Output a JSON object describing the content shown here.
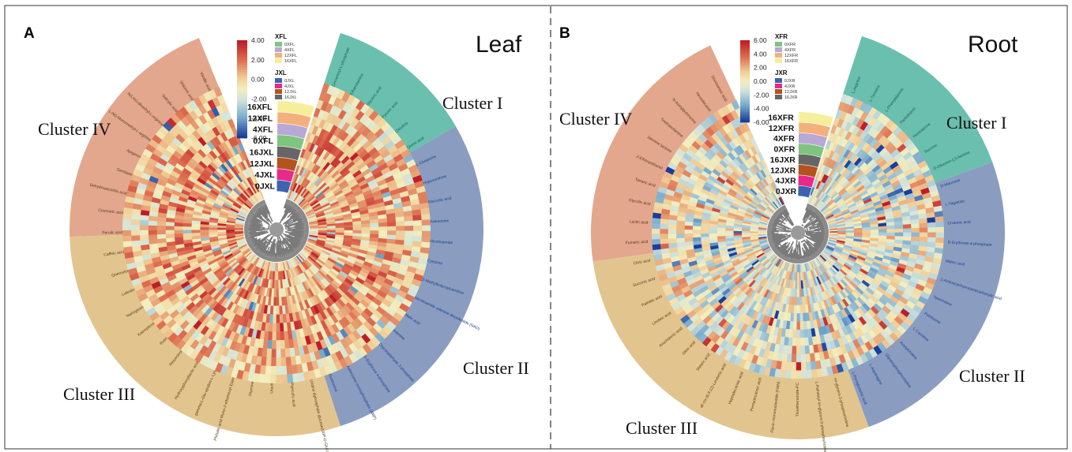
{
  "panels": [
    {
      "letter": "A",
      "title": "Leaf",
      "clusters": [
        {
          "name": "Cluster I",
          "color": "#6bbfae"
        },
        {
          "name": "Cluster II",
          "color": "#8a9dc1"
        },
        {
          "name": "Cluster III",
          "color": "#e2c58e"
        },
        {
          "name": "Cluster IV",
          "color": "#e3a78d"
        }
      ],
      "tracks": [
        "16XFL",
        "12XFL",
        "4XFL",
        "0XFL",
        "16JXL",
        "12JXL",
        "4JXL",
        "0JXL"
      ],
      "colorscale": {
        "ticks": [
          "4.00",
          "2.00",
          "0.00",
          "-2.00",
          "-4.00",
          "-6.00"
        ]
      },
      "legend_groups": [
        {
          "title": "XFL",
          "items": [
            {
              "label": "0XFL",
              "color": "#7fc47f"
            },
            {
              "label": "4XFL",
              "color": "#b7a8d6"
            },
            {
              "label": "12XFL",
              "color": "#f3b07d"
            },
            {
              "label": "16XFL",
              "color": "#f6ef9a"
            }
          ]
        },
        {
          "title": "JXL",
          "items": [
            {
              "label": "0JXL",
              "color": "#3b63b0"
            },
            {
              "label": "4JXL",
              "color": "#e7298a"
            },
            {
              "label": "12JXL",
              "color": "#b3541e"
            },
            {
              "label": "16JXL",
              "color": "#666666"
            }
          ]
        }
      ],
      "metabolites": [
        "Cinnamoyl-L-phosphate",
        "Ethanolamine",
        "Glyceric acid",
        "Pyruvic acid",
        "Citrulline",
        "Quinic acid",
        "L-Glutamine",
        "Hypoxanthine",
        "Gluconic acid",
        "Adenosine",
        "Nicotinamide",
        "Cytosine",
        "2-Methylbutyroylcarnitine",
        "Nicotinamide adenine dinucleotide (NAD)",
        "Malic acid",
        "Adenine",
        "Glyceraldehyde 3-phosphate",
        "D-Erythrose 4-phosphate",
        "Adenosine monophosphate (AMP)",
        "Guanosine",
        "Uridine diphosphate glucose(UDP-D-Glucose)",
        "Pipecolic acid",
        "Uracil",
        "Thymine",
        "Phthalic acid Mono-2-ethylhexyl Ester",
        "gamma-L-Glu-epsilon-L-Lys",
        "Hydroxyphenyllactic acid",
        "Resorcinol",
        "Rutin",
        "Kaempferol",
        "Naringenin",
        "Luteolin",
        "Quercetin",
        "Caffeic acid",
        "Ferulic acid",
        "Coumaric acid",
        "Dehydroascorbic acid",
        "Genistein",
        "Apigenin",
        "L-NG-Monomethyl-L-arginine",
        "NG,NG-dimethyl-L-arginine",
        "Salicylic acid",
        "Shikimic acid",
        "Vanillic acid"
      ]
    },
    {
      "letter": "B",
      "title": "Root",
      "clusters": [
        {
          "name": "Cluster I",
          "color": "#6bbfae"
        },
        {
          "name": "Cluster II",
          "color": "#8a9dc1"
        },
        {
          "name": "Cluster III",
          "color": "#e2c58e"
        },
        {
          "name": "Cluster IV",
          "color": "#e3a78d"
        }
      ],
      "tracks": [
        "16XFR",
        "12XFR",
        "4XFR",
        "0XFR",
        "16JXR",
        "12JXR",
        "4JXR",
        "0JXR"
      ],
      "colorscale": {
        "ticks": [
          "6.00",
          "4.00",
          "2.00",
          "0.00",
          "-2.00",
          "-4.00",
          "-6.00"
        ]
      },
      "legend_groups": [
        {
          "title": "XFR",
          "items": [
            {
              "label": "0XFR",
              "color": "#7fc47f"
            },
            {
              "label": "4XFR",
              "color": "#b7a8d6"
            },
            {
              "label": "12XFR",
              "color": "#f3b07d"
            },
            {
              "label": "16XFR",
              "color": "#f6ef9a"
            }
          ]
        },
        {
          "title": "JXR",
          "items": [
            {
              "label": "0JXR",
              "color": "#3b63b0"
            },
            {
              "label": "4JXR",
              "color": "#e7298a"
            },
            {
              "label": "12JXR",
              "color": "#b3541e"
            },
            {
              "label": "16JXR",
              "color": "#666666"
            }
          ]
        }
      ],
      "metabolites": [
        "L-Arginine",
        "L-Tyrosine",
        "L-Phenylalanine",
        "Pantothenol",
        "Homoserine",
        "Sucrose",
        "D-Glucono-1,5-lactone",
        "D-Mannose",
        "L-Tagatose",
        "Crotonic acid",
        "D-Erythrose-4-phosphate",
        "Maleic acid",
        "1-Aminocyclopropanecarboxylic acid",
        "Spermidine",
        "Putrescine",
        "L-Carnitine",
        "Acetylcholine",
        "Glycerophosphocholine",
        "L-Asparagine",
        "L-Pyroglutamic acid",
        "sn-glycero-3-phosphocholine",
        "1-Palmitoyl-sn-glycero-3-phosphocholine",
        "Thioetheramide-PC",
        "Flavin mononucleotide (FMN)",
        "Pentadecanoic acid",
        "Heptadecanoic acid",
        "all cis-(6,9,12)-Linolenic acid",
        "Stearic acid",
        "Oleic acid",
        "Arachidonic acid",
        "Linoleic acid",
        "Palmitic acid",
        "Succinic acid",
        "Citric acid",
        "Fumaric acid",
        "Lactic acid",
        "Glycolic acid",
        "Tartaric acid",
        "2-Ethoxyethanol",
        "Jasmine lactone",
        "Triethanolamine",
        "N-Acetylputrescine",
        "Hexadecanol",
        "Docosanoic acid"
      ]
    }
  ]
}
